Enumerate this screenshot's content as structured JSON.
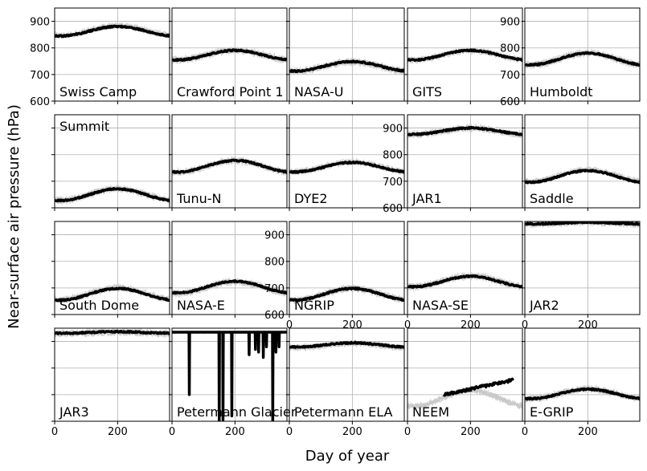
{
  "chart_data": {
    "type": "line",
    "xlabel": "Day of year",
    "ylabel": "Near-surface air pressure (hPa)",
    "xlim": [
      0,
      365
    ],
    "ylim": [
      600,
      950
    ],
    "xticks": [
      0,
      200
    ],
    "yticks": [
      600,
      700,
      800,
      900
    ],
    "grid": true,
    "panels": [
      {
        "name": "Swiss Camp",
        "mean": 870,
        "amp": 18
      },
      {
        "name": "Crawford Point 1",
        "mean": 780,
        "amp": 18
      },
      {
        "name": "NASA-U",
        "mean": 738,
        "amp": 18
      },
      {
        "name": "GITS",
        "mean": 780,
        "amp": 18
      },
      {
        "name": "Humboldt",
        "mean": 767,
        "amp": 22
      },
      {
        "name": "Summit",
        "mean": 658,
        "amp": 22
      },
      {
        "name": "Tunu-N",
        "mean": 765,
        "amp": 22
      },
      {
        "name": "DYE2",
        "mean": 760,
        "amp": 18
      },
      {
        "name": "JAR1",
        "mean": 893,
        "amp": 12
      },
      {
        "name": "Saddle",
        "mean": 727,
        "amp": 22
      },
      {
        "name": "South Dome",
        "mean": 685,
        "amp": 22
      },
      {
        "name": "NASA-E",
        "mean": 712,
        "amp": 22
      },
      {
        "name": "NGRIP",
        "mean": 685,
        "amp": 22
      },
      {
        "name": "NASA-SE",
        "mean": 732,
        "amp": 20
      },
      {
        "name": "JAR2",
        "mean": 945,
        "amp": 3
      },
      {
        "name": "JAR3",
        "mean": 935,
        "amp": 3
      },
      {
        "name": "Petermann Glacier",
        "mean": 935,
        "amp": 0
      },
      {
        "name": "Petermann ELA",
        "mean": 890,
        "amp": 8
      },
      {
        "name": "NEEM",
        "mean": 700,
        "amp": 30
      },
      {
        "name": "E-GRIP",
        "mean": 710,
        "amp": 18
      }
    ]
  }
}
